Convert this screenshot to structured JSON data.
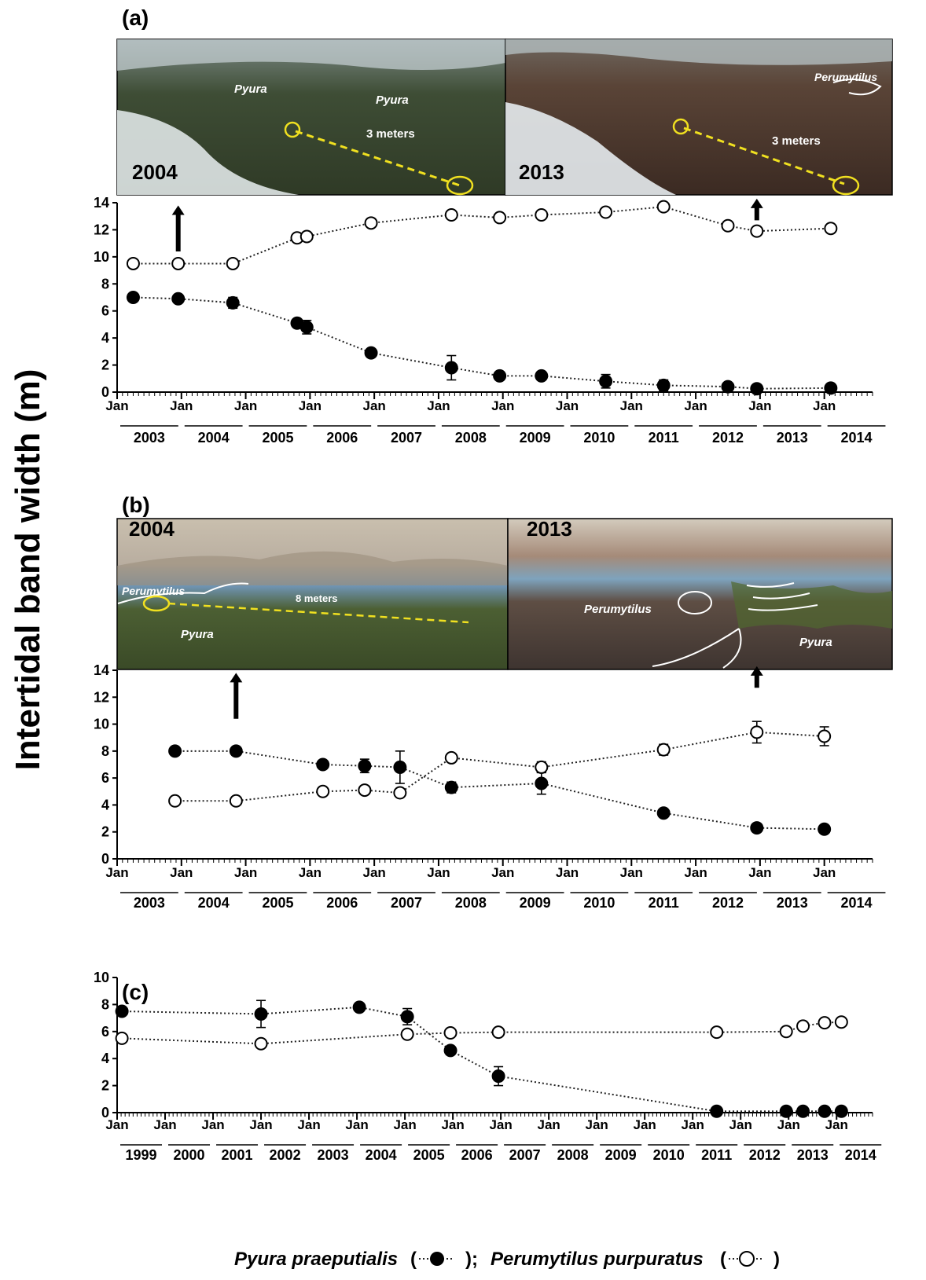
{
  "ylabel": "Intertidal band width (m)",
  "legend": {
    "pyura_label": "Pyura praeputialis",
    "perumytilus_label": "Perumytilus purpuratus",
    "open": "(",
    "sep": ");",
    "close": ")"
  },
  "colors": {
    "filled": "#000000",
    "open": "#ffffff",
    "axis": "#000000",
    "line": "#222222"
  },
  "photos": {
    "a": {
      "left": {
        "year": "2004",
        "labels": [
          "Pyura",
          "Pyura"
        ],
        "scale": "3 meters"
      },
      "right": {
        "year": "2013",
        "labels": [
          "Perumytilus"
        ],
        "scale": "3 meters"
      }
    },
    "b": {
      "left": {
        "year": "2004",
        "labels": [
          "Perumytilus",
          "Pyura"
        ],
        "scale": "8 meters"
      },
      "right": {
        "year": "2013",
        "labels": [
          "Perumytilus",
          "Pyura"
        ]
      }
    }
  },
  "chart_data": [
    {
      "panel": "(a)",
      "type": "scatter",
      "ylim": [
        0,
        14
      ],
      "yticks": [
        0,
        2,
        4,
        6,
        8,
        10,
        12,
        14
      ],
      "xlim": [
        2003,
        2014.75
      ],
      "tick_label": "Jan",
      "year_labels": [
        "2003",
        "2004",
        "2005",
        "2006",
        "2007",
        "2008",
        "2009",
        "2010",
        "2011",
        "2012",
        "2013",
        "2014"
      ],
      "arrows_at": [
        2003.95,
        2012.95
      ],
      "series": [
        {
          "name": "Pyura praeputialis",
          "marker": "filled",
          "x": [
            2003.25,
            2003.95,
            2004.8,
            2005.8,
            2005.95,
            2006.95,
            2008.2,
            2008.95,
            2009.6,
            2010.6,
            2011.5,
            2012.5,
            2012.95,
            2014.1
          ],
          "y": [
            7.0,
            6.9,
            6.6,
            5.1,
            4.8,
            2.9,
            1.8,
            1.2,
            1.2,
            0.8,
            0.5,
            0.4,
            0.25,
            0.3
          ],
          "err": [
            0,
            0,
            0.4,
            0.3,
            0.5,
            0.3,
            0.9,
            0.3,
            0.3,
            0.5,
            0.4,
            0.3,
            0,
            0
          ]
        },
        {
          "name": "Perumytilus purpuratus",
          "marker": "open",
          "x": [
            2003.25,
            2003.95,
            2004.8,
            2005.8,
            2005.95,
            2006.95,
            2008.2,
            2008.95,
            2009.6,
            2010.6,
            2011.5,
            2012.5,
            2012.95,
            2014.1
          ],
          "y": [
            9.5,
            9.5,
            9.5,
            11.4,
            11.5,
            12.5,
            13.1,
            12.9,
            13.1,
            13.3,
            13.7,
            12.3,
            11.9,
            12.1
          ],
          "err": [
            0,
            0,
            0,
            0,
            0,
            0,
            0,
            0,
            0,
            0,
            0,
            0,
            0,
            0
          ]
        }
      ]
    },
    {
      "panel": "(b)",
      "type": "scatter",
      "ylim": [
        0,
        14
      ],
      "yticks": [
        0,
        2,
        4,
        6,
        8,
        10,
        12,
        14
      ],
      "xlim": [
        2003,
        2014.75
      ],
      "tick_label": "Jan",
      "year_labels": [
        "2003",
        "2004",
        "2005",
        "2006",
        "2007",
        "2008",
        "2009",
        "2010",
        "2011",
        "2012",
        "2013",
        "2014"
      ],
      "arrows_at": [
        2004.85,
        2012.95
      ],
      "series": [
        {
          "name": "Pyura praeputialis",
          "marker": "filled",
          "x": [
            2003.9,
            2004.85,
            2006.2,
            2006.85,
            2007.4,
            2008.2,
            2009.6,
            2011.5,
            2012.95,
            2014.0
          ],
          "y": [
            8.0,
            8.0,
            7.0,
            6.9,
            6.8,
            5.3,
            5.6,
            3.4,
            2.3,
            2.2
          ],
          "err": [
            0,
            0,
            0.3,
            0.5,
            1.2,
            0.4,
            0.8,
            0,
            0.3,
            0
          ]
        },
        {
          "name": "Perumytilus purpuratus",
          "marker": "open",
          "x": [
            2003.9,
            2004.85,
            2006.2,
            2006.85,
            2007.4,
            2008.2,
            2009.6,
            2011.5,
            2012.95,
            2014.0
          ],
          "y": [
            4.3,
            4.3,
            5.0,
            5.1,
            4.9,
            7.5,
            6.8,
            8.1,
            9.4,
            9.1
          ],
          "err": [
            0,
            0,
            0,
            0,
            0,
            0,
            0.4,
            0.4,
            0.8,
            0.7
          ]
        }
      ]
    },
    {
      "panel": "(c)",
      "type": "scatter",
      "ylim": [
        0,
        10
      ],
      "yticks": [
        0,
        2,
        4,
        6,
        8,
        10
      ],
      "xlim": [
        1999,
        2014.75
      ],
      "tick_label": "Jan",
      "year_labels": [
        "1999",
        "2000",
        "2001",
        "2002",
        "2003",
        "2004",
        "2005",
        "2006",
        "2007",
        "2008",
        "2009",
        "2010",
        "2011",
        "2012",
        "2013",
        "2014"
      ],
      "arrows_at": [],
      "series": [
        {
          "name": "Pyura praeputialis",
          "marker": "filled",
          "x": [
            1999.1,
            2002.0,
            2004.05,
            2005.05,
            2005.95,
            2006.95,
            2011.5,
            2012.95,
            2013.3,
            2013.75,
            2014.1
          ],
          "y": [
            7.5,
            7.3,
            7.8,
            7.1,
            4.6,
            2.7,
            0.1,
            0.1,
            0.1,
            0.1,
            0.1
          ],
          "err": [
            0,
            1.0,
            0,
            0.6,
            0.3,
            0.7,
            0,
            0,
            0,
            0,
            0
          ]
        },
        {
          "name": "Perumytilus purpuratus",
          "marker": "open",
          "x": [
            1999.1,
            2002.0,
            2005.05,
            2005.95,
            2006.95,
            2011.5,
            2012.95,
            2013.3,
            2013.75,
            2014.1
          ],
          "y": [
            5.5,
            5.1,
            5.8,
            5.9,
            5.95,
            5.95,
            6.0,
            6.4,
            6.65,
            6.7
          ],
          "err": [
            0,
            0,
            0,
            0,
            0,
            0,
            0,
            0,
            0,
            0
          ]
        }
      ]
    }
  ]
}
